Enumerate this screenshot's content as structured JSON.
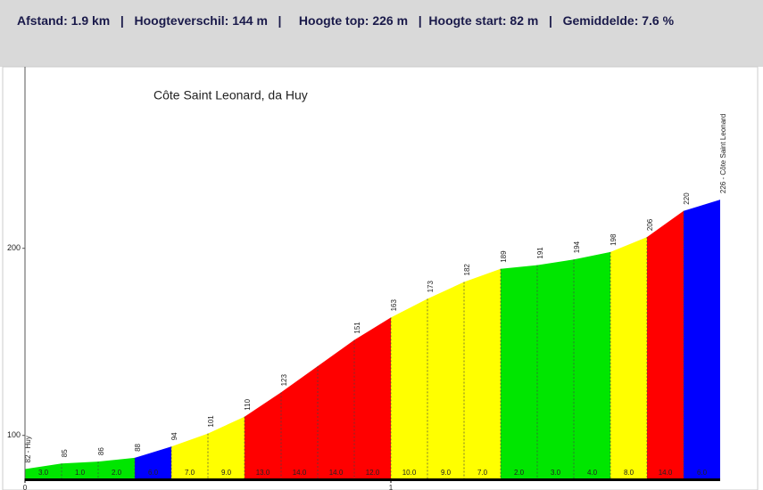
{
  "header": {
    "text": "Afstand: 1.9 km   |   Hoogteverschil: 144 m   |     Hoogte top: 226 m   |  Hoogte start: 82 m   |   Gemiddelde: 7.6 %"
  },
  "chart_data": {
    "type": "profile",
    "title": "Côte Saint Leonard, da Huy",
    "x": [
      0,
      0.1,
      0.2,
      0.3,
      0.4,
      0.5,
      0.6,
      0.7,
      0.8,
      0.9,
      1.0,
      1.1,
      1.2,
      1.3,
      1.4,
      1.5,
      1.6,
      1.7,
      1.8,
      1.9
    ],
    "values": [
      82,
      85,
      86,
      88,
      94,
      101,
      110,
      123,
      137,
      151,
      163,
      173,
      182,
      189,
      191,
      194,
      198,
      206,
      220,
      226
    ],
    "value_labels": [
      "82 - Huy",
      "85",
      "86",
      "88",
      "94",
      "101",
      "110",
      "123",
      null,
      "151",
      "163",
      "173",
      "182",
      "189",
      "191",
      "194",
      "198",
      "206",
      "220",
      "226 - Côte Saint Leonard"
    ],
    "segments": {
      "values": [
        3,
        1,
        2,
        6,
        7,
        9,
        13,
        14,
        14,
        12,
        10,
        9,
        7,
        2,
        3,
        4,
        8,
        14,
        6
      ],
      "value_labels": [
        "3.0",
        "1.0",
        "2.0",
        "6.0",
        "7.0",
        "9.0",
        "13.0",
        "14.0",
        "14.0",
        "12.0",
        "10.0",
        "9.0",
        "7.0",
        "2.0",
        "3.0",
        "4.0",
        "8.0",
        "14.0",
        "6.0"
      ],
      "colors": [
        "#00e600",
        "#00e600",
        "#00e600",
        "#0000ff",
        "#ffff00",
        "#ffff00",
        "#ff0000",
        "#ff0000",
        "#ff0000",
        "#ff0000",
        "#ffff00",
        "#ffff00",
        "#ffff00",
        "#00e600",
        "#00e600",
        "#00e600",
        "#ffff00",
        "#ff0000",
        "#0000ff"
      ]
    },
    "xlim": [
      0,
      2
    ],
    "xticks": [
      0,
      1
    ],
    "ylim": [
      77,
      297
    ],
    "yticks": [
      100,
      200
    ],
    "grid": false
  }
}
